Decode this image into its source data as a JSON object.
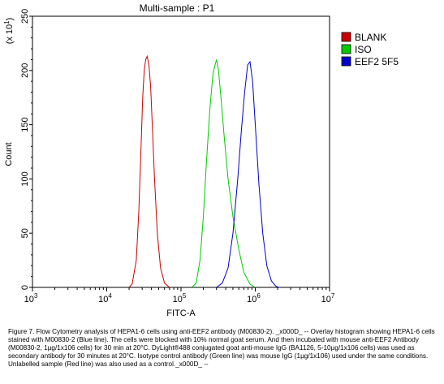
{
  "chart_data": {
    "type": "line",
    "title": "Multi-sample : P1",
    "xlabel": "FITC-A",
    "ylabel": "Count",
    "y_multiplier": "(x 10",
    "y_multiplier_exp": "1",
    "y_multiplier_close": ")",
    "x_scale": "log",
    "xlim": [
      1000,
      10000000
    ],
    "ylim": [
      0,
      250
    ],
    "x_ticks": [
      {
        "base": "10",
        "exp": "3",
        "value": 1000
      },
      {
        "base": "10",
        "exp": "4",
        "value": 10000
      },
      {
        "base": "10",
        "exp": "5",
        "value": 100000
      },
      {
        "base": "10",
        "exp": "6",
        "value": 1000000
      },
      {
        "base": "10",
        "exp": "7",
        "value": 10000000
      }
    ],
    "y_ticks": [
      "0",
      "50",
      "100",
      "150",
      "200",
      "250"
    ],
    "legend_position": "right",
    "series": [
      {
        "name": "BLANK",
        "color": "#cc0000",
        "points": [
          [
            20000,
            0
          ],
          [
            22000,
            3
          ],
          [
            25000,
            25
          ],
          [
            27000,
            70
          ],
          [
            29000,
            130
          ],
          [
            30500,
            175
          ],
          [
            32000,
            200
          ],
          [
            33500,
            210
          ],
          [
            35000,
            213
          ],
          [
            37000,
            205
          ],
          [
            39000,
            185
          ],
          [
            41000,
            150
          ],
          [
            44000,
            100
          ],
          [
            48000,
            50
          ],
          [
            53000,
            18
          ],
          [
            60000,
            4
          ],
          [
            70000,
            0
          ]
        ]
      },
      {
        "name": "ISO",
        "color": "#00cc00",
        "points": [
          [
            140000,
            0
          ],
          [
            160000,
            4
          ],
          [
            180000,
            25
          ],
          [
            200000,
            65
          ],
          [
            220000,
            115
          ],
          [
            245000,
            165
          ],
          [
            270000,
            198
          ],
          [
            300000,
            210
          ],
          [
            320000,
            200
          ],
          [
            345000,
            175
          ],
          [
            380000,
            140
          ],
          [
            430000,
            100
          ],
          [
            500000,
            65
          ],
          [
            600000,
            35
          ],
          [
            700000,
            14
          ],
          [
            850000,
            3
          ],
          [
            1000000,
            0
          ]
        ]
      },
      {
        "name": "EEF2 5F5",
        "color": "#0000cc",
        "points": [
          [
            300000,
            0
          ],
          [
            360000,
            4
          ],
          [
            430000,
            18
          ],
          [
            500000,
            50
          ],
          [
            580000,
            100
          ],
          [
            650000,
            145
          ],
          [
            720000,
            180
          ],
          [
            790000,
            205
          ],
          [
            850000,
            208
          ],
          [
            920000,
            190
          ],
          [
            1000000,
            150
          ],
          [
            1120000,
            95
          ],
          [
            1260000,
            50
          ],
          [
            1430000,
            20
          ],
          [
            1650000,
            6
          ],
          [
            1900000,
            1
          ],
          [
            2100000,
            0
          ]
        ]
      }
    ]
  },
  "caption": "Figure 7. Flow Cytometry analysis of HEPA1-6 cells using anti-EEF2 antibody (M00830-2). _x000D_ -- Overlay histogram showing HEPA1-6 cells stained with M00830-2 (Blue line). The cells were blocked with 10% normal goat serum. And then incubated with mouse anti-EEF2 Antibody (M00830-2, 1µg/1x106 cells) for 30 min at 20°C. DyLight®488 conjugated goat anti-mouse IgG (BA1126, 5-10µg/1x106 cells) was used as secondary antibody for 30 minutes at 20°C. Isotype control antibody (Green line) was mouse IgG (1µg/1x106) used under the same conditions. Unlabelled sample (Red line) was also used as a control._x000D_ --"
}
